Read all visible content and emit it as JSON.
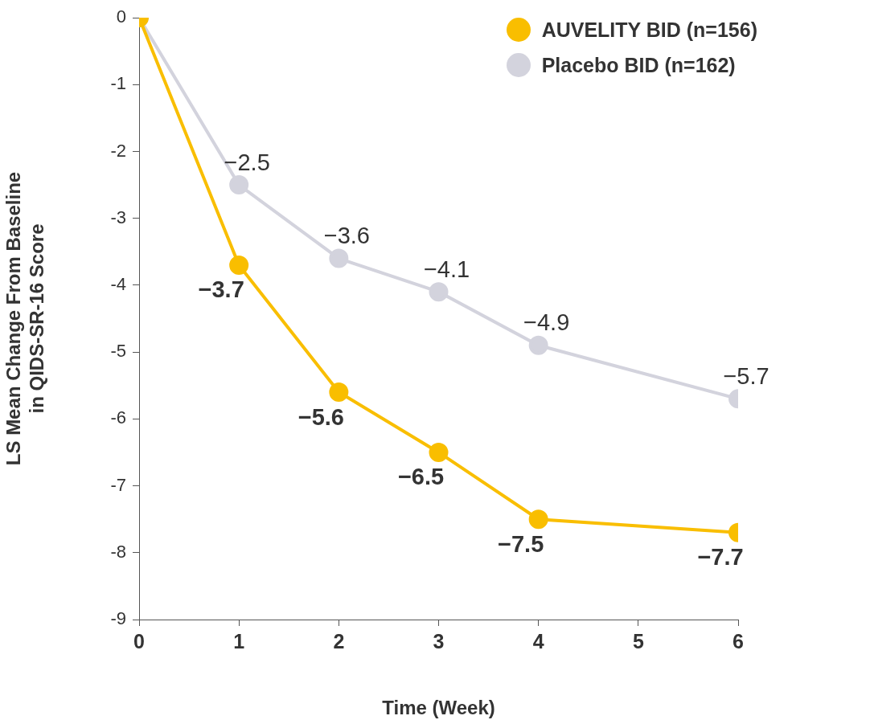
{
  "chart_data": {
    "type": "line",
    "x": [
      0,
      1,
      2,
      3,
      4,
      6
    ],
    "xlim": [
      0,
      6
    ],
    "xticks": [
      0,
      1,
      2,
      3,
      4,
      5,
      6
    ],
    "ylim": [
      -9,
      0
    ],
    "yticks": [
      -9,
      -8,
      -7,
      -6,
      -5,
      -4,
      -3,
      -2,
      -1,
      0
    ],
    "xlabel": "Time (Week)",
    "ylabel": [
      "LS Mean Change From Baseline",
      "in QIDS-SR-16 Score"
    ],
    "grid": false,
    "legend": "upper right",
    "data_labels": true,
    "marker": "circle",
    "series": [
      {
        "name": "AUVELITY BID (n=156)",
        "color": "#F9BE00",
        "values": [
          0,
          -3.7,
          -5.6,
          -6.5,
          -7.5,
          -7.7
        ],
        "value_labels": [
          null,
          "−3.7",
          "−5.6",
          "−6.5",
          "−7.5",
          "−7.7"
        ]
      },
      {
        "name": "Placebo BID (n=162)",
        "color": "#D3D3DD",
        "values": [
          0,
          -2.5,
          -3.6,
          -4.1,
          -4.9,
          -5.7
        ],
        "value_labels": [
          null,
          "−2.5",
          "−3.6",
          "−4.1",
          "−4.9",
          "−5.7"
        ]
      }
    ]
  }
}
